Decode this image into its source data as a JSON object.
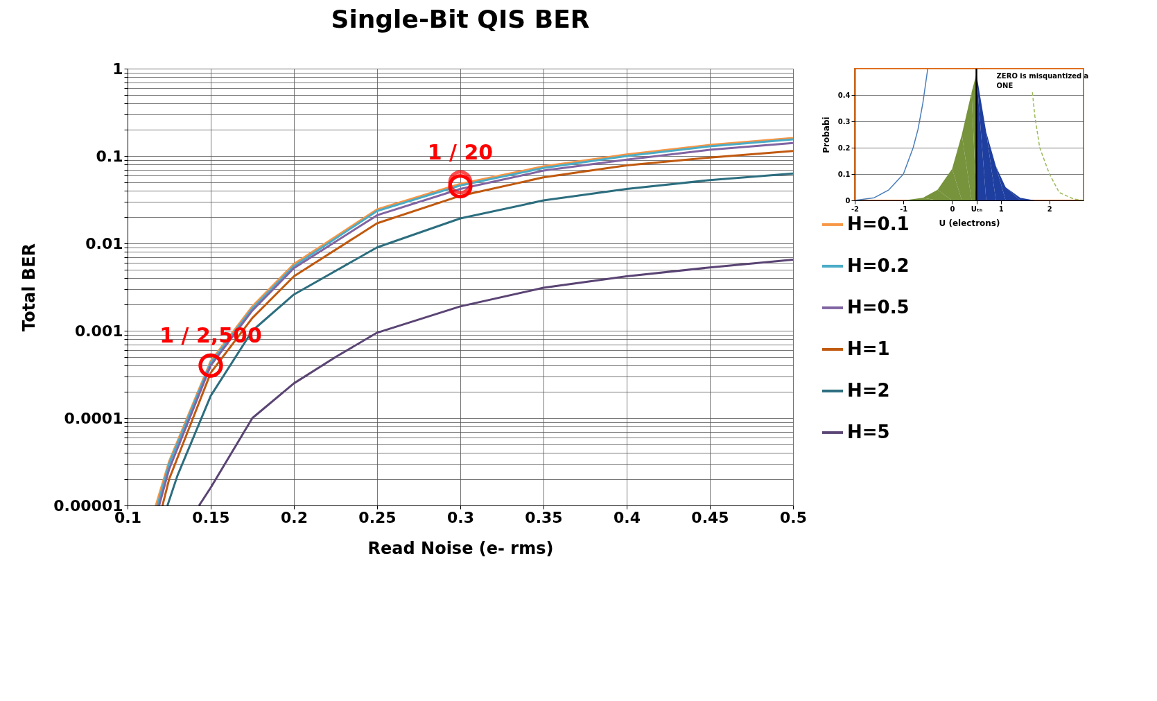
{
  "chart_data": [
    {
      "type": "line",
      "title": "Single-Bit QIS BER",
      "xlabel": "Read Noise (e- rms)",
      "ylabel": "Total BER",
      "log": "y",
      "grid": true,
      "legend": "right",
      "xlim": [
        0.1,
        0.5
      ],
      "xticks": [
        0.1,
        0.15,
        0.2,
        0.25,
        0.3,
        0.35,
        0.4,
        0.45,
        0.5
      ],
      "ylim": [
        1e-05,
        1
      ],
      "yticks": [
        {
          "value": 1e-05,
          "label": "0.00001"
        },
        {
          "value": 2e-05,
          "label": null
        },
        {
          "value": 3e-05,
          "label": null
        },
        {
          "value": 4e-05,
          "label": null
        },
        {
          "value": 5e-05,
          "label": null
        },
        {
          "value": 6e-05,
          "label": null
        },
        {
          "value": 7e-05,
          "label": null
        },
        {
          "value": 8e-05,
          "label": null
        },
        {
          "value": 9e-05,
          "label": null
        },
        0.0001,
        {
          "value": 0.0002,
          "label": null
        },
        {
          "value": 0.0003,
          "label": null
        },
        {
          "value": 0.0004,
          "label": null
        },
        {
          "value": 0.0005,
          "label": null
        },
        {
          "value": 0.0006,
          "label": null
        },
        {
          "value": 0.0007,
          "label": null
        },
        {
          "value": 0.0008,
          "label": null
        },
        {
          "value": 0.0009,
          "label": null
        },
        0.001,
        {
          "value": 0.002,
          "label": null
        },
        {
          "value": 0.003,
          "label": null
        },
        {
          "value": 0.004,
          "label": null
        },
        {
          "value": 0.005,
          "label": null
        },
        {
          "value": 0.006,
          "label": null
        },
        {
          "value": 0.007,
          "label": null
        },
        {
          "value": 0.008,
          "label": null
        },
        {
          "value": 0.009,
          "label": null
        },
        0.01,
        {
          "value": 0.02,
          "label": null
        },
        {
          "value": 0.03,
          "label": null
        },
        {
          "value": 0.04,
          "label": null
        },
        {
          "value": 0.05,
          "label": null
        },
        {
          "value": 0.06,
          "label": null
        },
        {
          "value": 0.07,
          "label": null
        },
        {
          "value": 0.08,
          "label": null
        },
        {
          "value": 0.09,
          "label": null
        },
        0.1,
        {
          "value": 0.2,
          "label": null
        },
        {
          "value": 0.3,
          "label": null
        },
        {
          "value": 0.4,
          "label": null
        },
        {
          "value": 0.5,
          "label": null
        },
        {
          "value": 0.6,
          "label": null
        },
        {
          "value": 0.7,
          "label": null
        },
        {
          "value": 0.8,
          "label": null
        },
        {
          "value": 0.9,
          "label": null
        },
        1
      ],
      "x": [
        0.118,
        0.125,
        0.15,
        0.175,
        0.2,
        0.25,
        0.3,
        0.35,
        0.4,
        0.45,
        0.5
      ],
      "series": [
        {
          "name": "H=0.1",
          "color": "#f79646",
          "x": [
            0.117,
            0.125,
            0.15,
            0.175,
            0.2,
            0.25,
            0.3,
            0.35,
            0.4,
            0.45,
            0.5
          ],
          "values": [
            1e-05,
            3.2e-05,
            0.00045,
            0.0019,
            0.0058,
            0.0245,
            0.048,
            0.076,
            0.104,
            0.134,
            0.161
          ]
        },
        {
          "name": "H=0.2",
          "color": "#4bacc6",
          "values": [
            1e-05,
            3e-05,
            0.00043,
            0.0018,
            0.0055,
            0.0235,
            0.046,
            0.073,
            0.1,
            0.129,
            0.155
          ]
        },
        {
          "name": "H=0.5",
          "color": "#8064a2",
          "x": [
            0.119,
            0.125,
            0.15,
            0.175,
            0.2,
            0.25,
            0.3,
            0.35,
            0.4,
            0.45,
            0.5
          ],
          "values": [
            1e-05,
            2.6e-05,
            0.0004,
            0.0017,
            0.0052,
            0.021,
            0.042,
            0.068,
            0.091,
            0.118,
            0.141
          ]
        },
        {
          "name": "H=1",
          "color": "#c0590f",
          "x": [
            0.121,
            0.125,
            0.15,
            0.175,
            0.2,
            0.25,
            0.3,
            0.35,
            0.4,
            0.45,
            0.5
          ],
          "values": [
            1e-05,
            2e-05,
            0.00033,
            0.0014,
            0.0042,
            0.017,
            0.035,
            0.057,
            0.078,
            0.096,
            0.114
          ]
        },
        {
          "name": "H=2",
          "color": "#2c6e7f",
          "x": [
            0.124,
            0.13,
            0.15,
            0.175,
            0.2,
            0.25,
            0.3,
            0.35,
            0.4,
            0.45,
            0.5
          ],
          "values": [
            1e-05,
            2.2e-05,
            0.00018,
            0.001,
            0.0026,
            0.009,
            0.0193,
            0.031,
            0.042,
            0.053,
            0.063
          ]
        },
        {
          "name": "H=5",
          "color": "#5a4474",
          "x": [
            0.143,
            0.15,
            0.175,
            0.2,
            0.225,
            0.25,
            0.3,
            0.35,
            0.4,
            0.45,
            0.5
          ],
          "values": [
            1e-05,
            1.6e-05,
            0.0001,
            0.00025,
            0.0005,
            0.00095,
            0.0019,
            0.0031,
            0.0042,
            0.0053,
            0.0065
          ]
        },
        {
          "type": "scatter",
          "marker": "circle",
          "color": "#ff0000",
          "x": [
            0.15,
            0.3
          ],
          "values": [
            0.0004,
            0.045
          ]
        }
      ],
      "annotations": [
        {
          "text": "1 / 2,500",
          "x": 0.15,
          "y": 0.0004
        },
        {
          "text": "1 / 20",
          "x": 0.3,
          "y": 0.05
        }
      ]
    },
    {
      "type": "line",
      "xlabel": "U (electrons)",
      "ylabel": "Probabi",
      "grid": "y",
      "xlim": [
        -2,
        2.7
      ],
      "xticks": [
        -2,
        -1,
        0,
        {
          "value": 0.5,
          "label": "Uₜₕ"
        },
        1,
        2
      ],
      "ylim": [
        0,
        0.5
      ],
      "yticks": [
        0,
        0.1,
        0.2,
        0.3,
        0.4
      ],
      "series": [
        {
          "type": "line",
          "color": "#4a7ebb",
          "x": [
            -2,
            -1.6,
            -1.3,
            -1.0,
            -0.8,
            -0.7,
            -0.6,
            -0.5
          ],
          "values": [
            0,
            0.01,
            0.04,
            0.1,
            0.2,
            0.27,
            0.37,
            0.5
          ]
        },
        {
          "type": "area",
          "color": "#77933c",
          "x": [
            -1,
            -0.6,
            -0.3,
            0,
            0.2,
            0.4,
            0.5
          ],
          "values": [
            0,
            0.01,
            0.04,
            0.12,
            0.25,
            0.41,
            0.48
          ]
        },
        {
          "type": "area",
          "color": "#1f3fa0",
          "x": [
            0.5,
            0.7,
            0.9,
            1.1,
            1.4,
            1.7
          ],
          "values": [
            0.48,
            0.26,
            0.13,
            0.05,
            0.01,
            0
          ]
        },
        {
          "type": "line",
          "line_style": "dashed",
          "color": "#9bbb59",
          "x": [
            1.65,
            1.7,
            1.8,
            2.0,
            2.2,
            2.5,
            2.7
          ],
          "values": [
            0.41,
            0.32,
            0.2,
            0.1,
            0.03,
            0.005,
            0
          ]
        }
      ],
      "ref_lines": [
        {
          "axis": "x",
          "value": 0.5,
          "color": "#000000"
        }
      ],
      "annotations": [
        "ZERO is misquantized a",
        "ONE"
      ]
    }
  ]
}
